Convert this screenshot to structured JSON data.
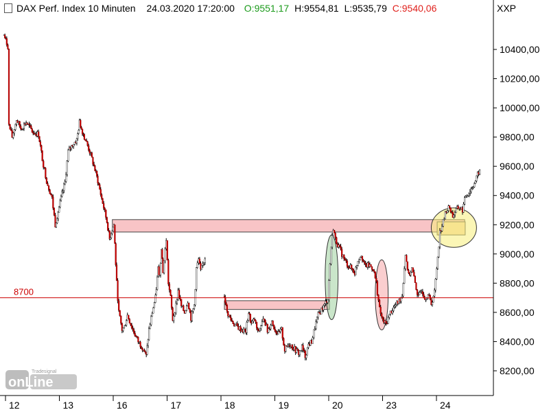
{
  "header": {
    "title": "DAX Perf. Index 10 Minuten",
    "datetime": "24.03.2020 17:20:00",
    "open": "O:9551,17",
    "high": "H:9554,81",
    "low": "L:9535,79",
    "close": "C:9540,06",
    "open_color": "#1a9a1a",
    "close_color": "#e0201c"
  },
  "axis_label": "XXP",
  "logo": {
    "brand": "Tradesignal",
    "text": "onLine"
  },
  "chart_data": {
    "type": "candlestick",
    "ylim": [
      8080,
      10660
    ],
    "y_ticks": [
      {
        "v": 10400,
        "label": "10400,00"
      },
      {
        "v": 10200,
        "label": "10200,00"
      },
      {
        "v": 10000,
        "label": "10000,00"
      },
      {
        "v": 9800,
        "label": "9800,00"
      },
      {
        "v": 9600,
        "label": "9600,00"
      },
      {
        "v": 9400,
        "label": "9400,00"
      },
      {
        "v": 9200,
        "label": "9200,00"
      },
      {
        "v": 9000,
        "label": "9000,00"
      },
      {
        "v": 8800,
        "label": "8800,00"
      },
      {
        "v": 8600,
        "label": "8600,00"
      },
      {
        "v": 8400,
        "label": "8400,00"
      },
      {
        "v": 8200,
        "label": "8200,00"
      }
    ],
    "x_ticks": [
      {
        "label": "12",
        "pos": 0.0
      },
      {
        "label": "13",
        "pos": 1.0
      },
      {
        "label": "16",
        "pos": 2.0
      },
      {
        "label": "17",
        "pos": 3.0
      },
      {
        "label": "18",
        "pos": 4.0
      },
      {
        "label": "19",
        "pos": 5.0
      },
      {
        "label": "20",
        "pos": 6.0
      },
      {
        "label": "23",
        "pos": 7.0
      },
      {
        "label": "24",
        "pos": 8.0
      }
    ],
    "x_range": [
      -0.05,
      8.85
    ],
    "hline": {
      "value": 8700,
      "label": "8700",
      "color": "#cc0000"
    },
    "zones": [
      {
        "x0": 1.92,
        "x1": 8.46,
        "y0": 9150,
        "y1": 9235,
        "fill": "#f8c4c6",
        "stroke": "#444"
      },
      {
        "x0": 4.0,
        "x1": 5.95,
        "y0": 8620,
        "y1": 8680,
        "fill": "#f8c4c6",
        "stroke": "#444"
      },
      {
        "x0": 7.95,
        "x1": 8.47,
        "y0": 9130,
        "y1": 9220,
        "fill": "#f6d7a8",
        "stroke": "#444"
      }
    ],
    "ellipses": [
      {
        "cx": 5.99,
        "cy": 8840,
        "rx": 0.12,
        "ry": 290,
        "fill": "#9fd19f",
        "opacity": 0.55
      },
      {
        "cx": 6.92,
        "cy": 8720,
        "rx": 0.12,
        "ry": 240,
        "fill": "#f5a5a8",
        "opacity": 0.55
      },
      {
        "cx": 8.26,
        "cy": 9180,
        "rx": 0.42,
        "ry": 135,
        "fill": "#f7ee7a",
        "opacity": 0.55
      }
    ],
    "price_path": [
      [
        -0.09,
        10500
      ],
      [
        -0.06,
        10460
      ],
      [
        -0.02,
        10420
      ],
      [
        0.0,
        9880
      ],
      [
        0.06,
        9800
      ],
      [
        0.14,
        9920
      ],
      [
        0.22,
        9860
      ],
      [
        0.32,
        9900
      ],
      [
        0.45,
        9830
      ],
      [
        0.55,
        9820
      ],
      [
        0.62,
        9650
      ],
      [
        0.7,
        9500
      ],
      [
        0.8,
        9380
      ],
      [
        0.86,
        9200
      ],
      [
        0.95,
        9350
      ],
      [
        1.04,
        9490
      ],
      [
        1.1,
        9700
      ],
      [
        1.18,
        9750
      ],
      [
        1.26,
        9780
      ],
      [
        1.31,
        9900
      ],
      [
        1.4,
        9800
      ],
      [
        1.5,
        9700
      ],
      [
        1.58,
        9600
      ],
      [
        1.65,
        9500
      ],
      [
        1.74,
        9350
      ],
      [
        1.82,
        9220
      ],
      [
        1.87,
        9100
      ],
      [
        1.9,
        9150
      ],
      [
        1.95,
        9200
      ],
      [
        2.0,
        8800
      ],
      [
        2.04,
        8600
      ],
      [
        2.1,
        8480
      ],
      [
        2.14,
        8500
      ],
      [
        2.2,
        8580
      ],
      [
        2.3,
        8480
      ],
      [
        2.4,
        8400
      ],
      [
        2.5,
        8350
      ],
      [
        2.55,
        8300
      ],
      [
        2.6,
        8480
      ],
      [
        2.66,
        8600
      ],
      [
        2.72,
        8700
      ],
      [
        2.77,
        8900
      ],
      [
        2.8,
        8850
      ],
      [
        2.83,
        9050
      ],
      [
        2.86,
        8880
      ],
      [
        2.92,
        9100
      ],
      [
        2.96,
        8800
      ],
      [
        3.0,
        8700
      ],
      [
        3.04,
        8550
      ],
      [
        3.1,
        8650
      ],
      [
        3.14,
        8750
      ],
      [
        3.2,
        8640
      ],
      [
        3.26,
        8600
      ],
      [
        3.32,
        8680
      ],
      [
        3.38,
        8560
      ],
      [
        3.44,
        8650
      ],
      [
        3.48,
        8900
      ],
      [
        3.52,
        8960
      ],
      [
        3.56,
        8880
      ],
      [
        3.62,
        8950
      ],
      [
        3.66,
        9000
      ],
      [
        4.0,
        8720
      ],
      [
        4.05,
        8600
      ],
      [
        4.12,
        8550
      ],
      [
        4.18,
        8520
      ],
      [
        4.24,
        8500
      ],
      [
        4.32,
        8480
      ],
      [
        4.4,
        8470
      ],
      [
        4.45,
        8600
      ],
      [
        4.5,
        8520
      ],
      [
        4.56,
        8550
      ],
      [
        4.62,
        8460
      ],
      [
        4.68,
        8510
      ],
      [
        4.74,
        8560
      ],
      [
        4.8,
        8470
      ],
      [
        4.88,
        8540
      ],
      [
        4.94,
        8480
      ],
      [
        5.0,
        8450
      ],
      [
        5.06,
        8480
      ],
      [
        5.12,
        8340
      ],
      [
        5.2,
        8390
      ],
      [
        5.3,
        8350
      ],
      [
        5.38,
        8320
      ],
      [
        5.44,
        8360
      ],
      [
        5.5,
        8300
      ],
      [
        5.56,
        8380
      ],
      [
        5.62,
        8400
      ],
      [
        5.68,
        8500
      ],
      [
        5.74,
        8580
      ],
      [
        5.8,
        8620
      ],
      [
        5.86,
        8650
      ],
      [
        5.92,
        8700
      ],
      [
        5.98,
        9050
      ],
      [
        6.02,
        9180
      ],
      [
        6.06,
        9100
      ],
      [
        6.12,
        9050
      ],
      [
        6.18,
        9000
      ],
      [
        6.24,
        8950
      ],
      [
        6.3,
        8920
      ],
      [
        6.36,
        8900
      ],
      [
        6.42,
        8870
      ],
      [
        6.48,
        8960
      ],
      [
        6.54,
        9000
      ],
      [
        6.6,
        8920
      ],
      [
        6.66,
        8920
      ],
      [
        6.7,
        8920
      ],
      [
        6.76,
        8900
      ],
      [
        6.82,
        8800
      ],
      [
        6.88,
        8620
      ],
      [
        6.94,
        8540
      ],
      [
        7.0,
        8520
      ],
      [
        7.08,
        8600
      ],
      [
        7.16,
        8640
      ],
      [
        7.24,
        8680
      ],
      [
        7.3,
        8720
      ],
      [
        7.36,
        9000
      ],
      [
        7.42,
        8850
      ],
      [
        7.48,
        8900
      ],
      [
        7.54,
        8800
      ],
      [
        7.6,
        8700
      ],
      [
        7.66,
        8760
      ],
      [
        7.72,
        8700
      ],
      [
        7.78,
        8720
      ],
      [
        7.84,
        8660
      ],
      [
        7.9,
        8740
      ],
      [
        8.0,
        9150
      ],
      [
        8.06,
        9220
      ],
      [
        8.12,
        9300
      ],
      [
        8.18,
        9320
      ],
      [
        8.24,
        9260
      ],
      [
        8.3,
        9300
      ],
      [
        8.36,
        9320
      ],
      [
        8.42,
        9300
      ],
      [
        8.48,
        9400
      ],
      [
        8.54,
        9420
      ],
      [
        8.6,
        9460
      ],
      [
        8.66,
        9500
      ],
      [
        8.72,
        9560
      ],
      [
        8.76,
        9560
      ]
    ]
  }
}
